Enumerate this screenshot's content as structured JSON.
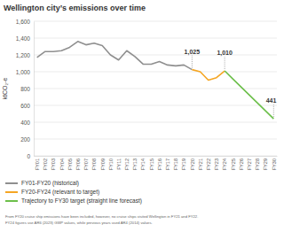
{
  "chart_data": {
    "type": "line",
    "title": "Wellington city’s emissions over time",
    "y_label": "ktCO₂-e",
    "categories": [
      "FY01",
      "FY02",
      "FY03",
      "FY04",
      "FY05",
      "FY06",
      "FY07",
      "FY08",
      "FY09",
      "FY10",
      "FY11",
      "FY12",
      "FY13",
      "FY14",
      "FY15",
      "FY16",
      "FY17",
      "FY18",
      "FY19",
      "FY20",
      "FY21",
      "FY22",
      "FY23",
      "FY24",
      "FY25",
      "FY26",
      "FY27",
      "FY28",
      "FY29",
      "FY30"
    ],
    "series": [
      {
        "name": "FY01-FY20 (historical)",
        "color": "#8f8f8f",
        "values": [
          1170,
          1240,
          1240,
          1250,
          1290,
          1360,
          1320,
          1340,
          1310,
          1200,
          1140,
          1250,
          1180,
          1090,
          1090,
          1120,
          1080,
          1070,
          1080,
          1025,
          null,
          null,
          null,
          null,
          null,
          null,
          null,
          null,
          null,
          null
        ]
      },
      {
        "name": "FY20-FY24 (relevant to target)",
        "color": "#f5a623",
        "values": [
          null,
          null,
          null,
          null,
          null,
          null,
          null,
          null,
          null,
          null,
          null,
          null,
          null,
          null,
          null,
          null,
          null,
          null,
          null,
          1025,
          1000,
          900,
          930,
          1010,
          null,
          null,
          null,
          null,
          null,
          null
        ]
      },
      {
        "name": "Trajectory to FY30 target (straight line forecast)",
        "color": "#6cbf4a",
        "values": [
          null,
          null,
          null,
          null,
          null,
          null,
          null,
          null,
          null,
          null,
          null,
          null,
          null,
          null,
          null,
          null,
          null,
          null,
          null,
          null,
          null,
          null,
          null,
          1010,
          915,
          820,
          725,
          630,
          536,
          441
        ]
      }
    ],
    "ylim": [
      0,
      1600
    ],
    "yticks": [
      0,
      200,
      400,
      600,
      800,
      {
        "value": 1000,
        "label": "1,000"
      },
      {
        "value": 1200,
        "label": "1,200"
      },
      {
        "value": 1400,
        "label": "1,400"
      },
      {
        "value": 1600,
        "label": "1,600"
      }
    ],
    "grid": true,
    "legend": "bottom",
    "annotations": [
      {
        "text": "1,025",
        "x": "FY20",
        "value": 1025
      },
      {
        "text": "1,010",
        "x": "FY24",
        "value": 1010
      },
      {
        "text": "441",
        "x": "FY30",
        "value": 441
      }
    ],
    "footnotes": [
      "From FY20 cruise ship emissions have been included, however, no cruise ships visited Wellington in FY21 and FY22.",
      "FY24 figures use AR6 (2023) GWP values, while previous years used AR4 (2014) values."
    ]
  }
}
